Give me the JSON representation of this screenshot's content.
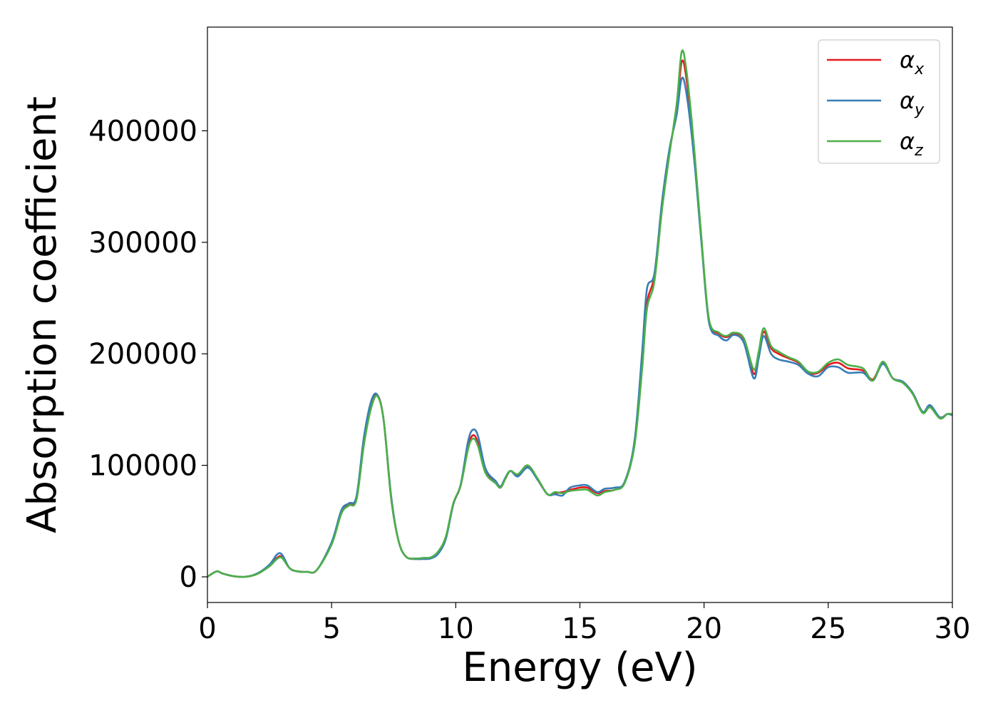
{
  "chart_data": {
    "type": "line",
    "title": "",
    "xlabel": "Energy (eV)",
    "ylabel": "Absorption coefficient",
    "xlim": [
      0,
      30
    ],
    "ylim": [
      -23000,
      493000
    ],
    "xticks": [
      0,
      5,
      10,
      15,
      20,
      25,
      30
    ],
    "yticks": [
      0,
      100000,
      200000,
      300000,
      400000
    ],
    "grid": false,
    "legend_position": "top-right",
    "colors": {
      "x": "#e41a1c",
      "y": "#377eb8",
      "z": "#4daf4a"
    },
    "series": [
      {
        "name": "α",
        "sub": "x",
        "color": "#e41a1c",
        "points": [
          [
            0,
            0
          ],
          [
            0.2,
            3000
          ],
          [
            0.4,
            5000
          ],
          [
            0.6,
            3000
          ],
          [
            1,
            800
          ],
          [
            1.5,
            0
          ],
          [
            2,
            2500
          ],
          [
            2.5,
            10000
          ],
          [
            2.8,
            17000
          ],
          [
            3,
            18000
          ],
          [
            3.3,
            8000
          ],
          [
            3.6,
            5000
          ],
          [
            4,
            4500
          ],
          [
            4.4,
            6000
          ],
          [
            5,
            30000
          ],
          [
            5.4,
            58000
          ],
          [
            5.7,
            65000
          ],
          [
            6,
            70000
          ],
          [
            6.3,
            120000
          ],
          [
            6.6,
            155000
          ],
          [
            6.85,
            163000
          ],
          [
            7.1,
            140000
          ],
          [
            7.4,
            70000
          ],
          [
            7.7,
            32000
          ],
          [
            8,
            18000
          ],
          [
            8.4,
            16000
          ],
          [
            8.7,
            16500
          ],
          [
            9,
            17000
          ],
          [
            9.3,
            22000
          ],
          [
            9.6,
            35000
          ],
          [
            9.9,
            65000
          ],
          [
            10.2,
            82000
          ],
          [
            10.5,
            117000
          ],
          [
            10.7,
            127000
          ],
          [
            10.9,
            120000
          ],
          [
            11.2,
            95000
          ],
          [
            11.6,
            85000
          ],
          [
            11.8,
            80000
          ],
          [
            12,
            88000
          ],
          [
            12.2,
            95000
          ],
          [
            12.5,
            91000
          ],
          [
            12.9,
            99000
          ],
          [
            13.3,
            87000
          ],
          [
            13.7,
            74000
          ],
          [
            14,
            75000
          ],
          [
            14.3,
            76000
          ],
          [
            14.6,
            78000
          ],
          [
            15,
            80000
          ],
          [
            15.3,
            80000
          ],
          [
            15.7,
            75000
          ],
          [
            16,
            77000
          ],
          [
            16.4,
            78000
          ],
          [
            16.8,
            85000
          ],
          [
            17.2,
            120000
          ],
          [
            17.5,
            190000
          ],
          [
            17.7,
            245000
          ],
          [
            18,
            270000
          ],
          [
            18.3,
            330000
          ],
          [
            18.6,
            380000
          ],
          [
            18.9,
            420000
          ],
          [
            19.1,
            462000
          ],
          [
            19.3,
            445000
          ],
          [
            19.6,
            380000
          ],
          [
            19.9,
            300000
          ],
          [
            20.2,
            230000
          ],
          [
            20.6,
            218000
          ],
          [
            20.9,
            215000
          ],
          [
            21.2,
            218000
          ],
          [
            21.6,
            213000
          ],
          [
            22,
            182000
          ],
          [
            22.2,
            200000
          ],
          [
            22.4,
            220000
          ],
          [
            22.7,
            205000
          ],
          [
            23,
            200000
          ],
          [
            23.4,
            196000
          ],
          [
            23.8,
            192000
          ],
          [
            24.2,
            183000
          ],
          [
            24.6,
            183000
          ],
          [
            25,
            190000
          ],
          [
            25.4,
            192000
          ],
          [
            25.8,
            187000
          ],
          [
            26.4,
            185000
          ],
          [
            26.8,
            177000
          ],
          [
            27.2,
            192000
          ],
          [
            27.6,
            178000
          ],
          [
            28,
            175000
          ],
          [
            28.4,
            165000
          ],
          [
            28.8,
            148000
          ],
          [
            29.1,
            153000
          ],
          [
            29.5,
            143000
          ],
          [
            29.8,
            146000
          ],
          [
            30,
            145000
          ]
        ]
      },
      {
        "name": "α",
        "sub": "y",
        "color": "#377eb8",
        "points": [
          [
            0,
            0
          ],
          [
            0.2,
            3000
          ],
          [
            0.4,
            5000
          ],
          [
            0.6,
            3000
          ],
          [
            1,
            800
          ],
          [
            1.5,
            0
          ],
          [
            2,
            3000
          ],
          [
            2.5,
            11000
          ],
          [
            2.8,
            20000
          ],
          [
            3,
            20000
          ],
          [
            3.3,
            8000
          ],
          [
            3.6,
            5000
          ],
          [
            4,
            4500
          ],
          [
            4.4,
            6000
          ],
          [
            5,
            31000
          ],
          [
            5.4,
            60000
          ],
          [
            5.7,
            66000
          ],
          [
            6,
            72000
          ],
          [
            6.3,
            125000
          ],
          [
            6.6,
            158000
          ],
          [
            6.85,
            163000
          ],
          [
            7.1,
            140000
          ],
          [
            7.4,
            72000
          ],
          [
            7.7,
            32000
          ],
          [
            8,
            18000
          ],
          [
            8.4,
            16000
          ],
          [
            8.7,
            16000
          ],
          [
            9,
            16500
          ],
          [
            9.3,
            21000
          ],
          [
            9.6,
            34000
          ],
          [
            9.9,
            65000
          ],
          [
            10.2,
            83000
          ],
          [
            10.5,
            122000
          ],
          [
            10.7,
            132000
          ],
          [
            10.9,
            126000
          ],
          [
            11.2,
            97000
          ],
          [
            11.6,
            86000
          ],
          [
            11.8,
            81000
          ],
          [
            12,
            89000
          ],
          [
            12.2,
            95000
          ],
          [
            12.5,
            90000
          ],
          [
            12.9,
            98000
          ],
          [
            13.3,
            87000
          ],
          [
            13.7,
            74000
          ],
          [
            14,
            74000
          ],
          [
            14.3,
            73000
          ],
          [
            14.6,
            80000
          ],
          [
            15,
            82000
          ],
          [
            15.3,
            82000
          ],
          [
            15.7,
            76000
          ],
          [
            16,
            79000
          ],
          [
            16.4,
            80000
          ],
          [
            16.8,
            85000
          ],
          [
            17.2,
            122000
          ],
          [
            17.5,
            200000
          ],
          [
            17.7,
            258000
          ],
          [
            18,
            272000
          ],
          [
            18.3,
            335000
          ],
          [
            18.6,
            383000
          ],
          [
            18.9,
            415000
          ],
          [
            19.1,
            447000
          ],
          [
            19.3,
            432000
          ],
          [
            19.6,
            375000
          ],
          [
            19.9,
            298000
          ],
          [
            20.2,
            228000
          ],
          [
            20.6,
            216000
          ],
          [
            20.9,
            212000
          ],
          [
            21.2,
            217000
          ],
          [
            21.6,
            210000
          ],
          [
            22,
            178000
          ],
          [
            22.2,
            196000
          ],
          [
            22.4,
            216000
          ],
          [
            22.7,
            200000
          ],
          [
            23,
            195000
          ],
          [
            23.4,
            193000
          ],
          [
            23.8,
            190000
          ],
          [
            24.2,
            182000
          ],
          [
            24.6,
            180000
          ],
          [
            25,
            188000
          ],
          [
            25.4,
            188000
          ],
          [
            25.8,
            183000
          ],
          [
            26.4,
            183000
          ],
          [
            26.8,
            176000
          ],
          [
            27.2,
            191000
          ],
          [
            27.6,
            178000
          ],
          [
            28,
            175000
          ],
          [
            28.4,
            165000
          ],
          [
            28.8,
            148000
          ],
          [
            29.1,
            154000
          ],
          [
            29.5,
            143000
          ],
          [
            29.8,
            146000
          ],
          [
            30,
            145000
          ]
        ]
      },
      {
        "name": "α",
        "sub": "z",
        "color": "#4daf4a",
        "points": [
          [
            0,
            0
          ],
          [
            0.2,
            3000
          ],
          [
            0.4,
            5000
          ],
          [
            0.6,
            3000
          ],
          [
            1,
            800
          ],
          [
            1.5,
            0
          ],
          [
            2,
            2500
          ],
          [
            2.5,
            9500
          ],
          [
            2.8,
            16000
          ],
          [
            3,
            17000
          ],
          [
            3.3,
            8000
          ],
          [
            3.6,
            5000
          ],
          [
            4,
            4500
          ],
          [
            4.4,
            6000
          ],
          [
            5,
            29000
          ],
          [
            5.4,
            57000
          ],
          [
            5.7,
            64000
          ],
          [
            6,
            69000
          ],
          [
            6.3,
            118000
          ],
          [
            6.6,
            152000
          ],
          [
            6.85,
            162000
          ],
          [
            7.1,
            140000
          ],
          [
            7.4,
            70000
          ],
          [
            7.7,
            32000
          ],
          [
            8,
            18000
          ],
          [
            8.4,
            16500
          ],
          [
            8.7,
            17000
          ],
          [
            9,
            17500
          ],
          [
            9.3,
            23000
          ],
          [
            9.6,
            36000
          ],
          [
            9.9,
            66000
          ],
          [
            10.2,
            82000
          ],
          [
            10.5,
            115000
          ],
          [
            10.7,
            124000
          ],
          [
            10.9,
            117000
          ],
          [
            11.2,
            93000
          ],
          [
            11.6,
            84000
          ],
          [
            11.8,
            80000
          ],
          [
            12,
            88000
          ],
          [
            12.2,
            95000
          ],
          [
            12.5,
            92000
          ],
          [
            12.9,
            100000
          ],
          [
            13.3,
            88000
          ],
          [
            13.7,
            74000
          ],
          [
            14,
            76000
          ],
          [
            14.3,
            75000
          ],
          [
            14.6,
            77000
          ],
          [
            15,
            78000
          ],
          [
            15.3,
            78000
          ],
          [
            15.7,
            73000
          ],
          [
            16,
            76000
          ],
          [
            16.4,
            78000
          ],
          [
            16.8,
            84000
          ],
          [
            17.2,
            118000
          ],
          [
            17.5,
            185000
          ],
          [
            17.7,
            240000
          ],
          [
            18,
            265000
          ],
          [
            18.3,
            328000
          ],
          [
            18.6,
            378000
          ],
          [
            18.9,
            425000
          ],
          [
            19.1,
            471000
          ],
          [
            19.3,
            452000
          ],
          [
            19.6,
            385000
          ],
          [
            19.9,
            302000
          ],
          [
            20.2,
            231000
          ],
          [
            20.6,
            219000
          ],
          [
            20.9,
            216000
          ],
          [
            21.2,
            219000
          ],
          [
            21.6,
            214000
          ],
          [
            22,
            186000
          ],
          [
            22.2,
            202000
          ],
          [
            22.4,
            223000
          ],
          [
            22.7,
            207000
          ],
          [
            23,
            202000
          ],
          [
            23.4,
            197000
          ],
          [
            23.8,
            193000
          ],
          [
            24.2,
            184000
          ],
          [
            24.6,
            184000
          ],
          [
            25,
            192000
          ],
          [
            25.4,
            195000
          ],
          [
            25.8,
            190000
          ],
          [
            26.4,
            187000
          ],
          [
            26.8,
            176000
          ],
          [
            27.2,
            193000
          ],
          [
            27.6,
            178000
          ],
          [
            28,
            174000
          ],
          [
            28.4,
            164000
          ],
          [
            28.8,
            147000
          ],
          [
            29.1,
            152000
          ],
          [
            29.5,
            142000
          ],
          [
            29.8,
            146000
          ],
          [
            30,
            146000
          ]
        ]
      }
    ]
  }
}
